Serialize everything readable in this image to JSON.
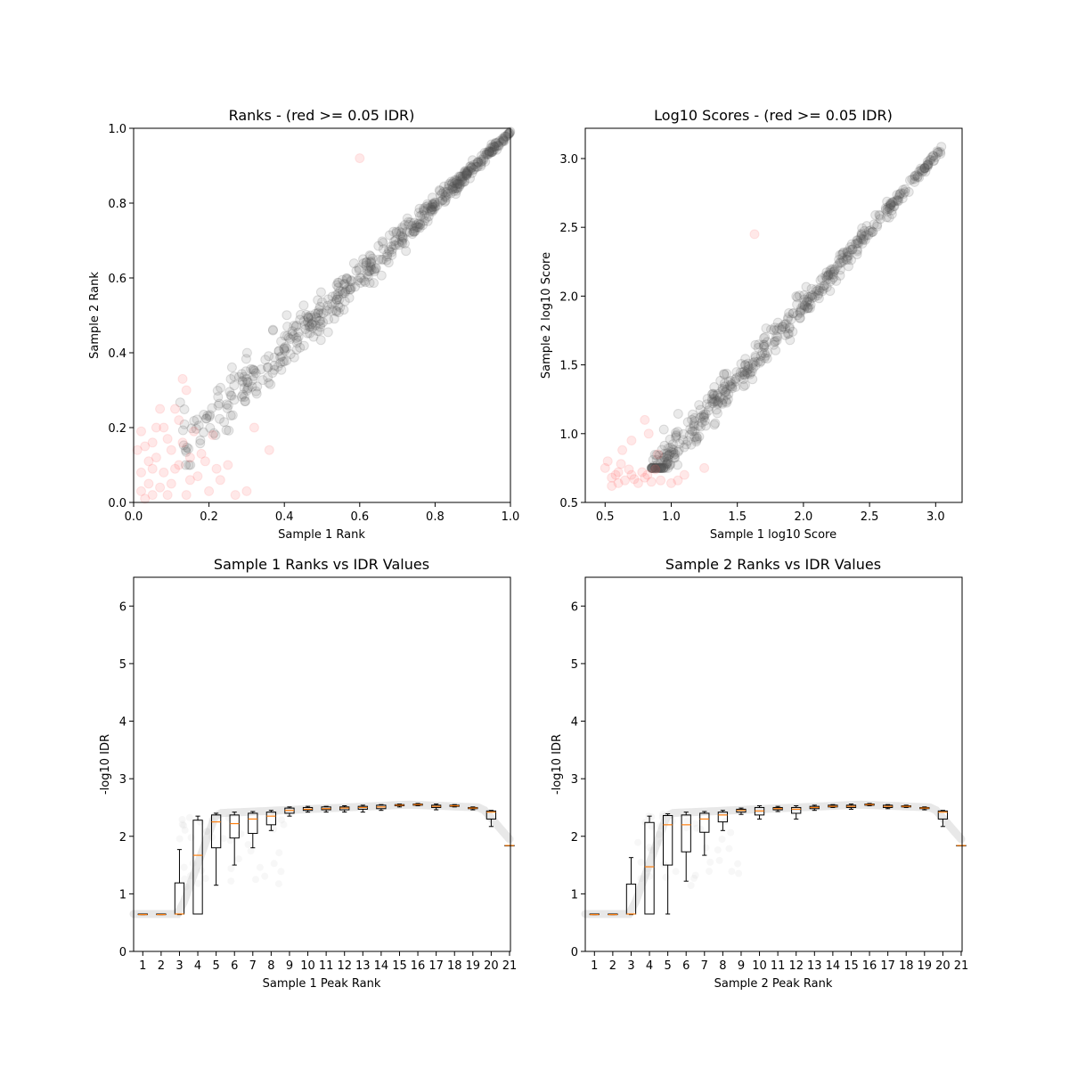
{
  "chart_data": [
    {
      "id": "ranks",
      "type": "scatter",
      "title": "Ranks - (red >= 0.05 IDR)",
      "xlabel": "Sample 1 Rank",
      "ylabel": "Sample 2 Rank",
      "xlim": [
        0,
        1
      ],
      "ylim": [
        0,
        1
      ],
      "xticks": [
        "0.0",
        "0.2",
        "0.4",
        "0.6",
        "0.8",
        "1.0"
      ],
      "yticks": [
        "0.0",
        "0.2",
        "0.4",
        "0.6",
        "0.8",
        "1.0"
      ],
      "colors": {
        "pass": "#555555",
        "fail": "#ff6666"
      },
      "series": [
        {
          "fail": true,
          "points": [
            [
              0.02,
              0.08
            ],
            [
              0.03,
              0.15
            ],
            [
              0.05,
              0.02
            ],
            [
              0.06,
              0.12
            ],
            [
              0.08,
              0.2
            ],
            [
              0.1,
              0.05
            ],
            [
              0.12,
              0.1
            ],
            [
              0.02,
              0.19
            ],
            [
              0.04,
              0.05
            ],
            [
              0.07,
              0.25
            ],
            [
              0.09,
              0.17
            ],
            [
              0.11,
              0.09
            ],
            [
              0.13,
              0.33
            ],
            [
              0.14,
              0.3
            ],
            [
              0.15,
              0.06
            ],
            [
              0.16,
              0.19
            ],
            [
              0.18,
              0.13
            ],
            [
              0.2,
              0.03
            ],
            [
              0.22,
              0.09
            ],
            [
              0.05,
              0.09
            ],
            [
              0.01,
              0.14
            ],
            [
              0.03,
              0.01
            ],
            [
              0.06,
              0.2
            ],
            [
              0.08,
              0.08
            ],
            [
              0.1,
              0.14
            ],
            [
              0.12,
              0.22
            ],
            [
              0.14,
              0.02
            ],
            [
              0.17,
              0.07
            ],
            [
              0.19,
              0.11
            ],
            [
              0.21,
              0.18
            ],
            [
              0.23,
              0.06
            ],
            [
              0.25,
              0.1
            ],
            [
              0.27,
              0.02
            ],
            [
              0.3,
              0.03
            ],
            [
              0.32,
              0.2
            ],
            [
              0.36,
              0.14
            ],
            [
              0.6,
              0.92
            ],
            [
              0.04,
              0.11
            ],
            [
              0.09,
              0.02
            ],
            [
              0.11,
              0.25
            ],
            [
              0.13,
              0.16
            ],
            [
              0.15,
              0.12
            ],
            [
              0.07,
              0.04
            ],
            [
              0.02,
              0.03
            ],
            [
              0.05,
              0.16
            ]
          ]
        },
        {
          "fail": false,
          "points": "diagonal"
        }
      ]
    },
    {
      "id": "scores",
      "type": "scatter",
      "title": "Log10 Scores - (red >= 0.05 IDR)",
      "xlabel": "Sample 1 log10 Score",
      "ylabel": "Sample 2 log10 Score",
      "xlim": [
        0.35,
        3.2
      ],
      "ylim": [
        0.5,
        3.22
      ],
      "xticks": [
        "0.5",
        "1.0",
        "1.5",
        "2.0",
        "2.5",
        "3.0"
      ],
      "yticks": [
        "0.5",
        "1.0",
        "1.5",
        "2.0",
        "2.5",
        "3.0"
      ],
      "colors": {
        "pass": "#555555",
        "fail": "#ff6666"
      },
      "series": [
        {
          "fail": true,
          "points": [
            [
              0.5,
              0.75
            ],
            [
              0.55,
              0.68
            ],
            [
              0.6,
              0.72
            ],
            [
              0.65,
              0.66
            ],
            [
              0.7,
              0.7
            ],
            [
              0.75,
              0.64
            ],
            [
              0.8,
              0.68
            ],
            [
              0.85,
              0.65
            ],
            [
              0.52,
              0.8
            ],
            [
              0.58,
              0.7
            ],
            [
              0.62,
              0.78
            ],
            [
              0.68,
              0.74
            ],
            [
              0.72,
              0.67
            ],
            [
              0.78,
              0.72
            ],
            [
              0.82,
              0.7
            ],
            [
              0.88,
              0.74
            ],
            [
              0.92,
              0.66
            ],
            [
              1.0,
              0.64
            ],
            [
              1.05,
              0.66
            ],
            [
              1.1,
              0.7
            ],
            [
              1.25,
              0.75
            ],
            [
              0.8,
              1.1
            ],
            [
              0.83,
              1.0
            ],
            [
              0.9,
              0.85
            ],
            [
              0.63,
              0.88
            ],
            [
              0.7,
              0.95
            ],
            [
              0.55,
              0.62
            ],
            [
              0.6,
              0.64
            ],
            [
              1.63,
              2.45
            ]
          ]
        },
        {
          "fail": false,
          "points": "diagonal"
        }
      ]
    },
    {
      "id": "s1box",
      "type": "box",
      "title": "Sample 1 Ranks vs IDR Values",
      "xlabel": "Sample 1 Peak Rank",
      "ylabel": "-log10 IDR",
      "ylim": [
        0,
        6.5
      ],
      "xticks": [
        "1",
        "2",
        "3",
        "4",
        "5",
        "6",
        "7",
        "8",
        "9",
        "10",
        "11",
        "12",
        "13",
        "14",
        "15",
        "16",
        "17",
        "18",
        "19",
        "20",
        "21"
      ],
      "yticks": [
        "0",
        "1",
        "2",
        "3",
        "4",
        "5",
        "6"
      ],
      "boxes": [
        {
          "pos": 1,
          "whislo": 0.64,
          "q1": 0.64,
          "med": 0.64,
          "q3": 0.65,
          "whishi": 0.65
        },
        {
          "pos": 2,
          "whislo": 0.64,
          "q1": 0.64,
          "med": 0.64,
          "q3": 0.65,
          "whishi": 0.65
        },
        {
          "pos": 3,
          "whislo": 0.64,
          "q1": 0.65,
          "med": 0.65,
          "q3": 1.19,
          "whishi": 1.77
        },
        {
          "pos": 4,
          "whislo": 0.65,
          "q1": 0.65,
          "med": 1.67,
          "q3": 2.28,
          "whishi": 2.35
        },
        {
          "pos": 5,
          "whislo": 1.15,
          "q1": 1.8,
          "med": 2.25,
          "q3": 2.37,
          "whishi": 2.4
        },
        {
          "pos": 6,
          "whislo": 1.5,
          "q1": 1.97,
          "med": 2.22,
          "q3": 2.37,
          "whishi": 2.42
        },
        {
          "pos": 7,
          "whislo": 1.8,
          "q1": 2.05,
          "med": 2.3,
          "q3": 2.4,
          "whishi": 2.43
        },
        {
          "pos": 8,
          "whislo": 2.1,
          "q1": 2.2,
          "med": 2.35,
          "q3": 2.42,
          "whishi": 2.45
        },
        {
          "pos": 9,
          "whislo": 2.35,
          "q1": 2.4,
          "med": 2.45,
          "q3": 2.49,
          "whishi": 2.51
        },
        {
          "pos": 10,
          "whislo": 2.42,
          "q1": 2.45,
          "med": 2.47,
          "q3": 2.5,
          "whishi": 2.52
        },
        {
          "pos": 11,
          "whislo": 2.42,
          "q1": 2.46,
          "med": 2.48,
          "q3": 2.51,
          "whishi": 2.52
        },
        {
          "pos": 12,
          "whislo": 2.42,
          "q1": 2.46,
          "med": 2.49,
          "q3": 2.51,
          "whishi": 2.53
        },
        {
          "pos": 13,
          "whislo": 2.42,
          "q1": 2.47,
          "med": 2.5,
          "q3": 2.52,
          "whishi": 2.54
        },
        {
          "pos": 14,
          "whislo": 2.45,
          "q1": 2.48,
          "med": 2.51,
          "q3": 2.54,
          "whishi": 2.55
        },
        {
          "pos": 15,
          "whislo": 2.51,
          "q1": 2.53,
          "med": 2.54,
          "q3": 2.55,
          "whishi": 2.56
        },
        {
          "pos": 16,
          "whislo": 2.53,
          "q1": 2.54,
          "med": 2.55,
          "q3": 2.56,
          "whishi": 2.57
        },
        {
          "pos": 17,
          "whislo": 2.46,
          "q1": 2.5,
          "med": 2.52,
          "q3": 2.54,
          "whishi": 2.56
        },
        {
          "pos": 18,
          "whislo": 2.51,
          "q1": 2.52,
          "med": 2.53,
          "q3": 2.54,
          "whishi": 2.55
        },
        {
          "pos": 19,
          "whislo": 2.46,
          "q1": 2.48,
          "med": 2.49,
          "q3": 2.5,
          "whishi": 2.51
        },
        {
          "pos": 20,
          "whislo": 2.17,
          "q1": 2.3,
          "med": 2.42,
          "q3": 2.44,
          "whishi": 2.45
        },
        {
          "pos": 21,
          "whislo": 1.84,
          "q1": 1.84,
          "med": 1.84,
          "q3": 1.84,
          "whishi": 1.84
        }
      ]
    },
    {
      "id": "s2box",
      "type": "box",
      "title": "Sample 2 Ranks vs IDR Values",
      "xlabel": "Sample 2 Peak Rank",
      "ylabel": "-log10 IDR",
      "ylim": [
        0,
        6.5
      ],
      "xticks": [
        "1",
        "2",
        "3",
        "4",
        "5",
        "6",
        "7",
        "8",
        "9",
        "10",
        "11",
        "12",
        "13",
        "14",
        "15",
        "16",
        "17",
        "18",
        "19",
        "20",
        "21"
      ],
      "yticks": [
        "0",
        "1",
        "2",
        "3",
        "4",
        "5",
        "6"
      ],
      "boxes": [
        {
          "pos": 1,
          "whislo": 0.64,
          "q1": 0.64,
          "med": 0.64,
          "q3": 0.65,
          "whishi": 0.65
        },
        {
          "pos": 2,
          "whislo": 0.64,
          "q1": 0.64,
          "med": 0.64,
          "q3": 0.65,
          "whishi": 0.65
        },
        {
          "pos": 3,
          "whislo": 0.64,
          "q1": 0.65,
          "med": 0.65,
          "q3": 1.17,
          "whishi": 1.63
        },
        {
          "pos": 4,
          "whislo": 0.65,
          "q1": 0.65,
          "med": 1.47,
          "q3": 2.24,
          "whishi": 2.35
        },
        {
          "pos": 5,
          "whislo": 0.65,
          "q1": 1.5,
          "med": 2.2,
          "q3": 2.36,
          "whishi": 2.39
        },
        {
          "pos": 6,
          "whislo": 1.22,
          "q1": 1.73,
          "med": 2.2,
          "q3": 2.37,
          "whishi": 2.42
        },
        {
          "pos": 7,
          "whislo": 1.67,
          "q1": 2.07,
          "med": 2.3,
          "q3": 2.4,
          "whishi": 2.43
        },
        {
          "pos": 8,
          "whislo": 2.1,
          "q1": 2.25,
          "med": 2.37,
          "q3": 2.42,
          "whishi": 2.45
        },
        {
          "pos": 9,
          "whislo": 2.38,
          "q1": 2.42,
          "med": 2.45,
          "q3": 2.47,
          "whishi": 2.49
        },
        {
          "pos": 10,
          "whislo": 2.3,
          "q1": 2.37,
          "med": 2.44,
          "q3": 2.5,
          "whishi": 2.53
        },
        {
          "pos": 11,
          "whislo": 2.43,
          "q1": 2.46,
          "med": 2.48,
          "q3": 2.5,
          "whishi": 2.52
        },
        {
          "pos": 12,
          "whislo": 2.3,
          "q1": 2.4,
          "med": 2.47,
          "q3": 2.5,
          "whishi": 2.53
        },
        {
          "pos": 13,
          "whislo": 2.45,
          "q1": 2.48,
          "med": 2.5,
          "q3": 2.52,
          "whishi": 2.54
        },
        {
          "pos": 14,
          "whislo": 2.5,
          "q1": 2.51,
          "med": 2.52,
          "q3": 2.54,
          "whishi": 2.55
        },
        {
          "pos": 15,
          "whislo": 2.47,
          "q1": 2.5,
          "med": 2.52,
          "q3": 2.54,
          "whishi": 2.56
        },
        {
          "pos": 16,
          "whislo": 2.53,
          "q1": 2.54,
          "med": 2.55,
          "q3": 2.56,
          "whishi": 2.57
        },
        {
          "pos": 17,
          "whislo": 2.48,
          "q1": 2.5,
          "med": 2.52,
          "q3": 2.54,
          "whishi": 2.55
        },
        {
          "pos": 18,
          "whislo": 2.5,
          "q1": 2.51,
          "med": 2.52,
          "q3": 2.53,
          "whishi": 2.54
        },
        {
          "pos": 19,
          "whislo": 2.46,
          "q1": 2.48,
          "med": 2.49,
          "q3": 2.5,
          "whishi": 2.51
        },
        {
          "pos": 20,
          "whislo": 2.17,
          "q1": 2.3,
          "med": 2.42,
          "q3": 2.44,
          "whishi": 2.45
        },
        {
          "pos": 21,
          "whislo": 1.84,
          "q1": 1.84,
          "med": 1.84,
          "q3": 1.84,
          "whishi": 1.84
        }
      ]
    }
  ]
}
